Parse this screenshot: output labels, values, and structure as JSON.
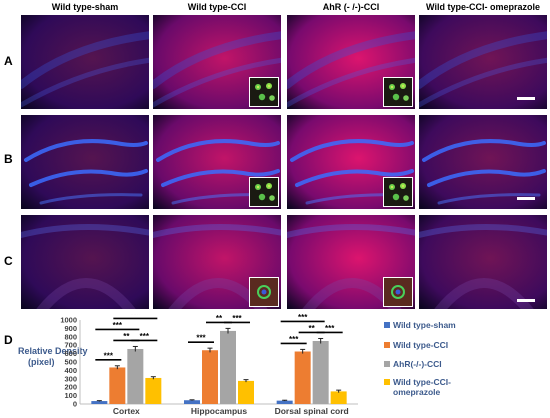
{
  "columns": [
    "Wild type-sham",
    "Wild type-CCI",
    "AhR (- /-)-CCI",
    "Wild type-CCI- omeprazole"
  ],
  "rows": [
    "A",
    "B",
    "C"
  ],
  "panel_d_label": "D",
  "colors": {
    "blue": "#4472c4",
    "orange": "#ed7d31",
    "gray": "#a5a5a5",
    "yellow": "#ffc000"
  },
  "chart_data": {
    "type": "bar",
    "ylabel": "Relative Density\n(pixel)",
    "ylim": [
      0,
      1000
    ],
    "yticks": [
      0,
      100,
      200,
      300,
      400,
      500,
      600,
      700,
      800,
      900,
      1000
    ],
    "categories": [
      "Cortex",
      "Hippocampus",
      "Dorsal spinal cord"
    ],
    "series": [
      {
        "name": "Wild type-sham",
        "color": "#4472c4",
        "values": [
          35,
          45,
          40
        ],
        "errors": [
          5,
          5,
          5
        ]
      },
      {
        "name": "Wild type-CCI",
        "color": "#ed7d31",
        "values": [
          435,
          640,
          625
        ],
        "errors": [
          20,
          25,
          25
        ]
      },
      {
        "name": "AhR(-/-)-CCI",
        "color": "#a5a5a5",
        "values": [
          655,
          870,
          750
        ],
        "errors": [
          30,
          30,
          30
        ]
      },
      {
        "name": "Wild type-CCI-\nomeprazole",
        "color": "#ffc000",
        "values": [
          310,
          275,
          150
        ],
        "errors": [
          15,
          15,
          15
        ]
      }
    ],
    "significance": "***",
    "significance_minor": "**"
  }
}
